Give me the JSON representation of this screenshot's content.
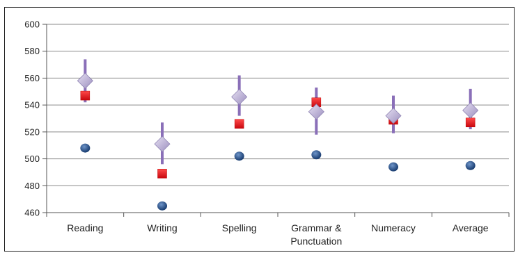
{
  "chart_data": {
    "type": "scatter",
    "title": "",
    "xlabel": "",
    "ylabel": "",
    "categories": [
      "Reading",
      "Writing",
      "Spelling",
      "Grammar & Punctuation",
      "Numeracy",
      "Average"
    ],
    "category_lines": [
      [
        "Reading"
      ],
      [
        "Writing"
      ],
      [
        "Spelling"
      ],
      [
        "Grammar &",
        "Punctuation"
      ],
      [
        "Numeracy"
      ],
      [
        "Average"
      ]
    ],
    "ylim": [
      460,
      600
    ],
    "yticks": [
      460,
      480,
      500,
      520,
      540,
      560,
      580,
      600
    ],
    "grid": true,
    "legend": "none",
    "series": [
      {
        "marker": "circle",
        "color": "#1f4e8c",
        "values": [
          508,
          465,
          502,
          503,
          494,
          495
        ]
      },
      {
        "marker": "square",
        "color": "#e11b22",
        "values": [
          547,
          489,
          526,
          542,
          529,
          527
        ]
      },
      {
        "marker": "diamond",
        "color": "#b9aed6",
        "values": [
          558,
          511,
          546,
          535,
          532,
          536
        ],
        "error_low": [
          542,
          496,
          532,
          518,
          519,
          522
        ],
        "error_high": [
          574,
          527,
          562,
          553,
          547,
          552
        ],
        "error_color": "#8a6fb8"
      }
    ]
  }
}
